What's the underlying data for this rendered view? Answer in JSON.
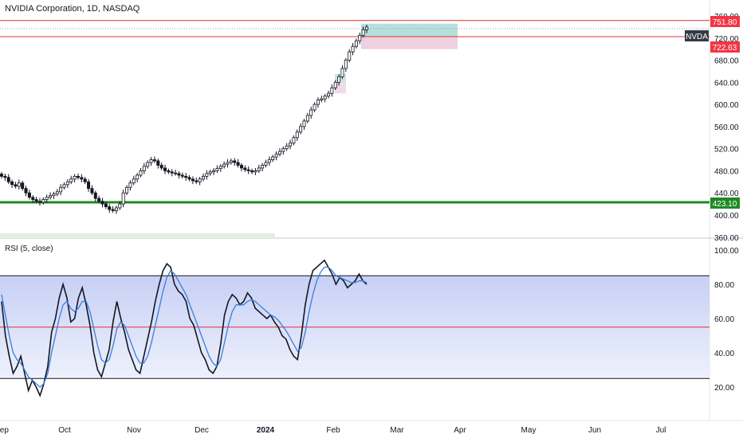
{
  "header": {
    "title": "NVIDIA Corporation, 1D, NASDAQ"
  },
  "rsi_header": {
    "title": "RSI (5, close)"
  },
  "colors": {
    "price_line": "#e03131",
    "support_line": "#1e8a23",
    "candle": "#131722",
    "rsi_line": "#131722",
    "rsi_ma": "#3b7ddd",
    "green_zone": "#8fd0c9",
    "red_zone": "#e3b8d0",
    "badge_red": "#f23645",
    "badge_dark": "#363a45",
    "badge_green": "#1e8a23"
  },
  "badges": {
    "ticker": "NVDA",
    "price_high": "751.80",
    "price_low": "722.63",
    "support": "423.10"
  },
  "chart_data": [
    {
      "type": "candlestick",
      "title": "NVIDIA Corporation, 1D, NASDAQ",
      "y_ticks": [
        "760.00",
        "720.00",
        "680.00",
        "640.00",
        "600.00",
        "560.00",
        "520.00",
        "480.00",
        "440.00",
        "400.00",
        "360.00"
      ],
      "ylim": [
        355,
        765
      ],
      "x_ticks": [
        "Sep",
        "Oct",
        "Nov",
        "Dec",
        "2024",
        "Feb",
        "Mar",
        "Apr",
        "May",
        "Jun",
        "Jul"
      ],
      "horizontal_lines": [
        {
          "value": 751.8,
          "style": "solid",
          "color": "#e03131"
        },
        {
          "value": 722.63,
          "style": "solid",
          "color": "#e03131"
        },
        {
          "value": 423.1,
          "style": "solid-thick",
          "color": "#1e8a23"
        }
      ],
      "closes_approx": [
        470,
        468,
        460,
        455,
        452,
        458,
        448,
        440,
        432,
        428,
        425,
        423,
        428,
        432,
        435,
        438,
        442,
        450,
        455,
        460,
        465,
        470,
        468,
        465,
        460,
        448,
        440,
        430,
        425,
        420,
        415,
        410,
        408,
        413,
        420,
        440,
        450,
        458,
        465,
        472,
        480,
        488,
        495,
        500,
        498,
        490,
        485,
        480,
        478,
        476,
        475,
        472,
        470,
        468,
        465,
        462,
        460,
        465,
        470,
        475,
        478,
        480,
        484,
        488,
        492,
        495,
        498,
        495,
        490,
        485,
        482,
        480,
        478,
        480,
        485,
        490,
        495,
        500,
        505,
        510,
        515,
        520,
        525,
        530,
        540,
        550,
        560,
        570,
        580,
        590,
        600,
        608,
        610,
        615,
        620,
        630,
        640,
        650,
        665,
        680,
        695,
        705,
        715,
        725,
        735,
        740
      ]
    },
    {
      "type": "line",
      "title": "RSI (5, close)",
      "y_ticks": [
        "100.00",
        "80.00",
        "60.00",
        "40.00",
        "20.00"
      ],
      "ylim": [
        10,
        104
      ],
      "horizontal_lines": [
        {
          "value": 85,
          "color": "#131722"
        },
        {
          "value": 55,
          "color": "#e03131"
        },
        {
          "value": 25,
          "color": "#131722"
        }
      ],
      "series": [
        {
          "values": [
            70,
            50,
            38,
            28,
            32,
            38,
            28,
            18,
            24,
            20,
            15,
            22,
            32,
            52,
            60,
            72,
            80,
            72,
            58,
            60,
            72,
            78,
            68,
            56,
            40,
            30,
            26,
            34,
            42,
            58,
            70,
            60,
            52,
            42,
            36,
            30,
            28,
            38,
            48,
            58,
            70,
            80,
            88,
            92,
            90,
            80,
            76,
            74,
            70,
            60,
            56,
            48,
            40,
            36,
            30,
            28,
            32,
            45,
            62,
            70,
            74,
            72,
            68,
            70,
            75,
            72,
            66,
            64,
            62,
            60,
            62,
            58,
            55,
            50,
            48,
            42,
            38,
            36,
            50,
            68,
            80,
            88,
            90,
            92,
            94,
            90,
            86,
            80,
            84,
            82,
            78,
            80,
            82,
            86,
            82,
            80
          ]
        },
        {
          "values": [
            74,
            62,
            50,
            40,
            36,
            34,
            30,
            26,
            24,
            22,
            20,
            22,
            28,
            40,
            50,
            60,
            68,
            70,
            66,
            64,
            66,
            70,
            70,
            64,
            54,
            44,
            36,
            34,
            36,
            44,
            54,
            58,
            56,
            50,
            44,
            38,
            34,
            34,
            38,
            46,
            56,
            66,
            76,
            84,
            88,
            86,
            82,
            78,
            74,
            68,
            62,
            56,
            50,
            44,
            38,
            34,
            32,
            36,
            46,
            56,
            64,
            68,
            68,
            68,
            70,
            71,
            70,
            68,
            66,
            64,
            62,
            61,
            59,
            56,
            53,
            49,
            45,
            41,
            43,
            52,
            64,
            74,
            82,
            87,
            90,
            90,
            88,
            85,
            84,
            83,
            82,
            81,
            81,
            82,
            82,
            81
          ]
        }
      ]
    }
  ]
}
